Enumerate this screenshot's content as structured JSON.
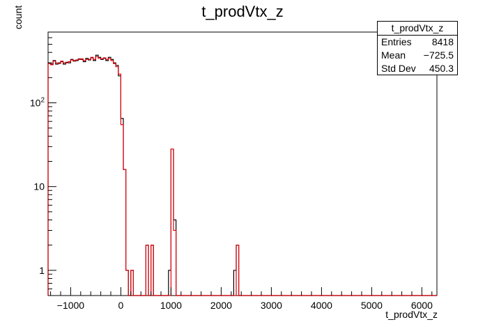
{
  "title": "t_prodVtx_z",
  "stats_box": {
    "name": "t_prodVtx_z",
    "rows": [
      {
        "label": "Entries",
        "value": "8418"
      },
      {
        "label": "Mean",
        "value": "−725.5"
      },
      {
        "label": "Std Dev",
        "value": "450.3"
      }
    ]
  },
  "chart_data": {
    "type": "histogram",
    "title": "t_prodVtx_z",
    "xlabel": "t_prodVtx_z",
    "ylabel": "count",
    "xlim": [
      -1450,
      6300
    ],
    "ylim": [
      0.5,
      700
    ],
    "yscale": "log",
    "grid": false,
    "legend": "stats box top-right",
    "bin_width": 50,
    "x_ticks": [
      -1000,
      0,
      1000,
      2000,
      3000,
      4000,
      5000,
      6000
    ],
    "x_tick_labels": [
      "−1000",
      "0",
      "1000",
      "2000",
      "3000",
      "4000",
      "5000",
      "6000"
    ],
    "y_ticks": [
      1,
      10,
      100
    ],
    "y_tick_labels": [
      "1",
      "10",
      "10²"
    ],
    "colors": {
      "black_series": "#000000",
      "red_series": "#e0000a"
    },
    "series": [
      {
        "color": "#000000",
        "bins": [
          [
            -1450,
            300
          ],
          [
            -1400,
            290
          ],
          [
            -1350,
            320
          ],
          [
            -1300,
            290
          ],
          [
            -1250,
            300
          ],
          [
            -1200,
            310
          ],
          [
            -1150,
            290
          ],
          [
            -1100,
            305
          ],
          [
            -1050,
            300
          ],
          [
            -1000,
            330
          ],
          [
            -950,
            315
          ],
          [
            -900,
            320
          ],
          [
            -850,
            335
          ],
          [
            -800,
            330
          ],
          [
            -750,
            310
          ],
          [
            -700,
            340
          ],
          [
            -650,
            325
          ],
          [
            -600,
            345
          ],
          [
            -550,
            320
          ],
          [
            -500,
            370
          ],
          [
            -450,
            350
          ],
          [
            -400,
            330
          ],
          [
            -350,
            340
          ],
          [
            -300,
            320
          ],
          [
            -250,
            350
          ],
          [
            -200,
            330
          ],
          [
            -150,
            300
          ],
          [
            -100,
            280
          ],
          [
            -50,
            210
          ],
          [
            0,
            65
          ],
          [
            50,
            16
          ],
          [
            100,
            1
          ],
          [
            150,
            0
          ],
          [
            200,
            1
          ],
          [
            250,
            0
          ],
          [
            300,
            0
          ],
          [
            350,
            0
          ],
          [
            400,
            0
          ],
          [
            450,
            0
          ],
          [
            500,
            2
          ],
          [
            550,
            0
          ],
          [
            600,
            2
          ],
          [
            650,
            0
          ],
          [
            700,
            0
          ],
          [
            750,
            0
          ],
          [
            800,
            0
          ],
          [
            850,
            0
          ],
          [
            900,
            0
          ],
          [
            950,
            1
          ],
          [
            1000,
            28
          ],
          [
            1050,
            4
          ],
          [
            1100,
            0
          ],
          [
            1150,
            0
          ],
          [
            1200,
            0
          ],
          [
            1250,
            0
          ],
          [
            1300,
            0
          ],
          [
            1350,
            0
          ],
          [
            1400,
            0
          ],
          [
            1450,
            0
          ],
          [
            1500,
            0
          ],
          [
            1550,
            0
          ],
          [
            1600,
            0
          ],
          [
            1650,
            0
          ],
          [
            1700,
            0
          ],
          [
            1750,
            0
          ],
          [
            1800,
            0
          ],
          [
            1850,
            0
          ],
          [
            1900,
            0
          ],
          [
            1950,
            0
          ],
          [
            2000,
            0
          ],
          [
            2050,
            0
          ],
          [
            2100,
            0
          ],
          [
            2150,
            0
          ],
          [
            2200,
            0
          ],
          [
            2250,
            1
          ],
          [
            2300,
            2
          ],
          [
            2350,
            0
          ]
        ]
      },
      {
        "color": "#e0000a",
        "bins": [
          [
            -1450,
            295
          ],
          [
            -1400,
            285
          ],
          [
            -1350,
            315
          ],
          [
            -1300,
            300
          ],
          [
            -1250,
            295
          ],
          [
            -1200,
            315
          ],
          [
            -1150,
            300
          ],
          [
            -1100,
            300
          ],
          [
            -1050,
            310
          ],
          [
            -1000,
            325
          ],
          [
            -950,
            320
          ],
          [
            -900,
            325
          ],
          [
            -850,
            330
          ],
          [
            -800,
            335
          ],
          [
            -750,
            320
          ],
          [
            -700,
            330
          ],
          [
            -650,
            330
          ],
          [
            -600,
            350
          ],
          [
            -550,
            330
          ],
          [
            -500,
            355
          ],
          [
            -450,
            340
          ],
          [
            -400,
            335
          ],
          [
            -350,
            345
          ],
          [
            -300,
            330
          ],
          [
            -250,
            340
          ],
          [
            -200,
            320
          ],
          [
            -150,
            295
          ],
          [
            -100,
            270
          ],
          [
            -50,
            220
          ],
          [
            0,
            55
          ],
          [
            50,
            16
          ],
          [
            100,
            1
          ],
          [
            150,
            0
          ],
          [
            200,
            1
          ],
          [
            250,
            0
          ],
          [
            300,
            0
          ],
          [
            350,
            0
          ],
          [
            400,
            0
          ],
          [
            450,
            0
          ],
          [
            500,
            2
          ],
          [
            550,
            0
          ],
          [
            600,
            2
          ],
          [
            650,
            0
          ],
          [
            700,
            0
          ],
          [
            750,
            0
          ],
          [
            800,
            0
          ],
          [
            850,
            0
          ],
          [
            900,
            0
          ],
          [
            950,
            0
          ],
          [
            1000,
            28
          ],
          [
            1050,
            3
          ],
          [
            1100,
            0
          ],
          [
            1150,
            0
          ],
          [
            1200,
            0
          ],
          [
            1250,
            0
          ],
          [
            1300,
            0
          ],
          [
            1350,
            0
          ],
          [
            1400,
            0
          ],
          [
            1450,
            0
          ],
          [
            1500,
            0
          ],
          [
            1550,
            0
          ],
          [
            1600,
            0
          ],
          [
            1650,
            0
          ],
          [
            1700,
            0
          ],
          [
            1750,
            0
          ],
          [
            1800,
            0
          ],
          [
            1850,
            0
          ],
          [
            1900,
            0
          ],
          [
            1950,
            0
          ],
          [
            2000,
            0
          ],
          [
            2050,
            0
          ],
          [
            2100,
            0
          ],
          [
            2150,
            0
          ],
          [
            2200,
            0
          ],
          [
            2250,
            0
          ],
          [
            2300,
            2
          ],
          [
            2350,
            0
          ]
        ]
      }
    ]
  }
}
